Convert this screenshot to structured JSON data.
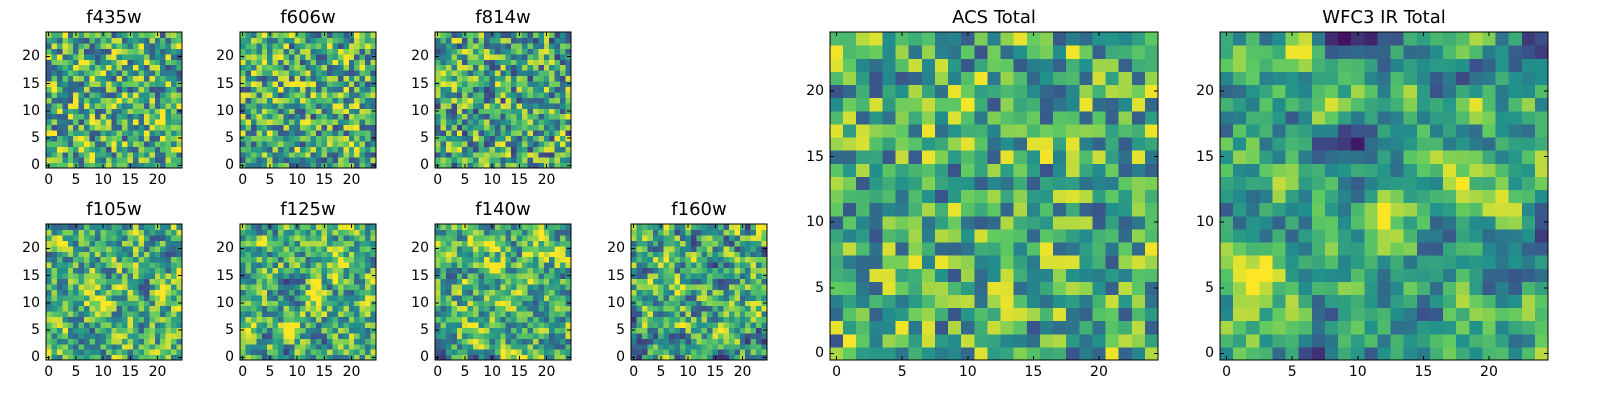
{
  "figure": {
    "background": "#ffffff",
    "colormap": [
      "#440154",
      "#3b528b",
      "#21918c",
      "#5ec962",
      "#fde725"
    ]
  },
  "chart_data": [
    {
      "type": "heatmap",
      "title": "f435w",
      "grid_size": 25,
      "seed": 11,
      "smooth": 0,
      "mean": 0.62,
      "spread": 0.42,
      "xticks": [
        "0",
        "5",
        "10",
        "15",
        "20"
      ],
      "yticks": [
        "0",
        "5",
        "10",
        "15",
        "20"
      ],
      "xlim": [
        0,
        24
      ],
      "ylim": [
        0,
        24
      ]
    },
    {
      "type": "heatmap",
      "title": "f606w",
      "grid_size": 25,
      "seed": 22,
      "smooth": 0,
      "mean": 0.62,
      "spread": 0.42,
      "xticks": [
        "0",
        "5",
        "10",
        "15",
        "20"
      ],
      "yticks": [
        "0",
        "5",
        "10",
        "15",
        "20"
      ],
      "xlim": [
        0,
        24
      ],
      "ylim": [
        0,
        24
      ]
    },
    {
      "type": "heatmap",
      "title": "f814w",
      "grid_size": 25,
      "seed": 33,
      "smooth": 0,
      "mean": 0.6,
      "spread": 0.42,
      "xticks": [
        "0",
        "5",
        "10",
        "15",
        "20"
      ],
      "yticks": [
        "0",
        "5",
        "10",
        "15",
        "20"
      ],
      "xlim": [
        0,
        24
      ],
      "ylim": [
        0,
        24
      ]
    },
    {
      "type": "heatmap",
      "title": "f105w",
      "grid_size": 25,
      "seed": 44,
      "smooth": 1,
      "mean": 0.64,
      "spread": 0.38,
      "xticks": [
        "0",
        "5",
        "10",
        "15",
        "20"
      ],
      "yticks": [
        "0",
        "5",
        "10",
        "15",
        "20"
      ],
      "xlim": [
        0,
        24
      ],
      "ylim": [
        0,
        24
      ]
    },
    {
      "type": "heatmap",
      "title": "f125w",
      "grid_size": 25,
      "seed": 55,
      "smooth": 1,
      "mean": 0.64,
      "spread": 0.38,
      "xticks": [
        "0",
        "5",
        "10",
        "15",
        "20"
      ],
      "yticks": [
        "0",
        "5",
        "10",
        "15",
        "20"
      ],
      "xlim": [
        0,
        24
      ],
      "ylim": [
        0,
        24
      ]
    },
    {
      "type": "heatmap",
      "title": "f140w",
      "grid_size": 25,
      "seed": 66,
      "smooth": 1,
      "mean": 0.64,
      "spread": 0.38,
      "xticks": [
        "0",
        "5",
        "10",
        "15",
        "20"
      ],
      "yticks": [
        "0",
        "5",
        "10",
        "15",
        "20"
      ],
      "xlim": [
        0,
        24
      ],
      "ylim": [
        0,
        24
      ]
    },
    {
      "type": "heatmap",
      "title": "f160w",
      "grid_size": 25,
      "seed": 77,
      "smooth": 1,
      "mean": 0.6,
      "spread": 0.4,
      "xticks": [
        "0",
        "5",
        "10",
        "15",
        "20"
      ],
      "yticks": [
        "0",
        "5",
        "10",
        "15",
        "20"
      ],
      "xlim": [
        0,
        24
      ],
      "ylim": [
        0,
        24
      ]
    },
    {
      "type": "heatmap",
      "title": "ACS Total",
      "grid_size": 25,
      "seed": 88,
      "smooth": 0,
      "mean": 0.62,
      "spread": 0.38,
      "xticks": [
        "0",
        "5",
        "10",
        "15",
        "20"
      ],
      "yticks": [
        "0",
        "5",
        "10",
        "15",
        "20"
      ],
      "xlim": [
        0,
        24
      ],
      "ylim": [
        0,
        24
      ]
    },
    {
      "type": "heatmap",
      "title": "WFC3 IR Total",
      "grid_size": 25,
      "seed": 99,
      "smooth": 2,
      "mean": 0.58,
      "spread": 0.34,
      "xticks": [
        "0",
        "5",
        "10",
        "15",
        "20"
      ],
      "yticks": [
        "0",
        "5",
        "10",
        "15",
        "20"
      ],
      "xlim": [
        0,
        24
      ],
      "ylim": [
        0,
        24
      ]
    }
  ]
}
